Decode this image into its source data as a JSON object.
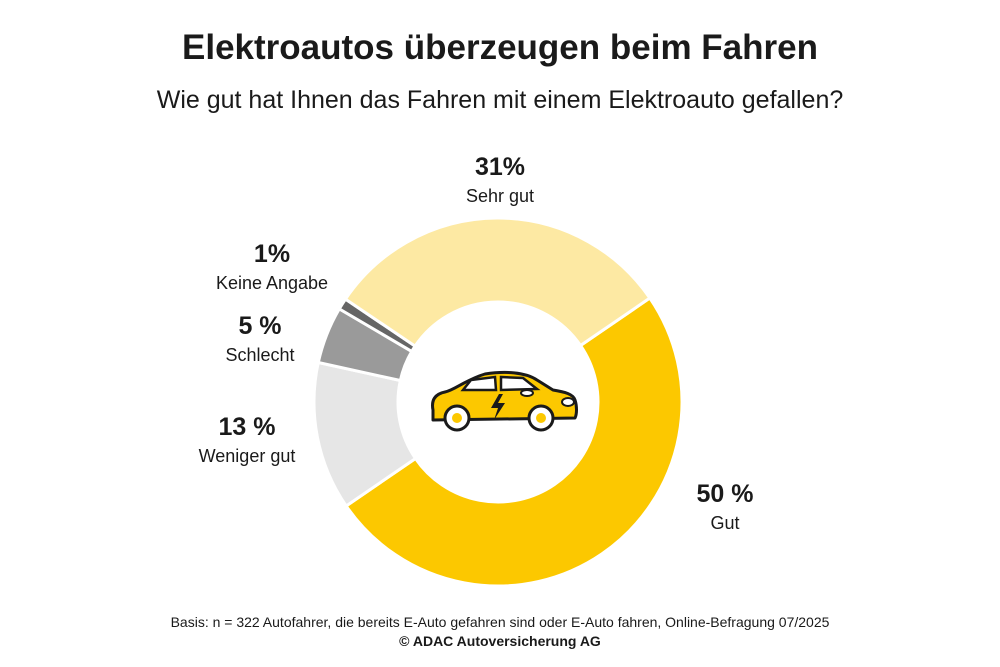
{
  "chart_data": {
    "type": "pie",
    "variant": "donut",
    "title": "Elektroautos überzeugen beim Fahren",
    "subtitle": "Wie gut hat Ihnen das Fahren mit einem Elektroauto gefallen?",
    "start_angle_deg": 55.6,
    "slices": [
      {
        "label": "Gut",
        "value": 50,
        "pct_label": "50 %",
        "color": "#fcc800"
      },
      {
        "label": "Weniger gut",
        "value": 13,
        "pct_label": "13 %",
        "color": "#e6e6e6"
      },
      {
        "label": "Schlecht",
        "value": 5,
        "pct_label": "5 %",
        "color": "#9a9a9a"
      },
      {
        "label": "Keine Angabe",
        "value": 1,
        "pct_label": "1%",
        "color": "#666666"
      },
      {
        "label": "Sehr gut",
        "value": 31,
        "pct_label": "31%",
        "color": "#fde9a3"
      }
    ],
    "center_icon": "electric-car-icon"
  },
  "footer": {
    "basis": "Basis: n = 322 Autofahrer, die bereits E-Auto gefahren sind oder E-Auto fahren, Online-Befragung 07/2025",
    "copyright": "© ADAC Autoversicherung AG"
  }
}
